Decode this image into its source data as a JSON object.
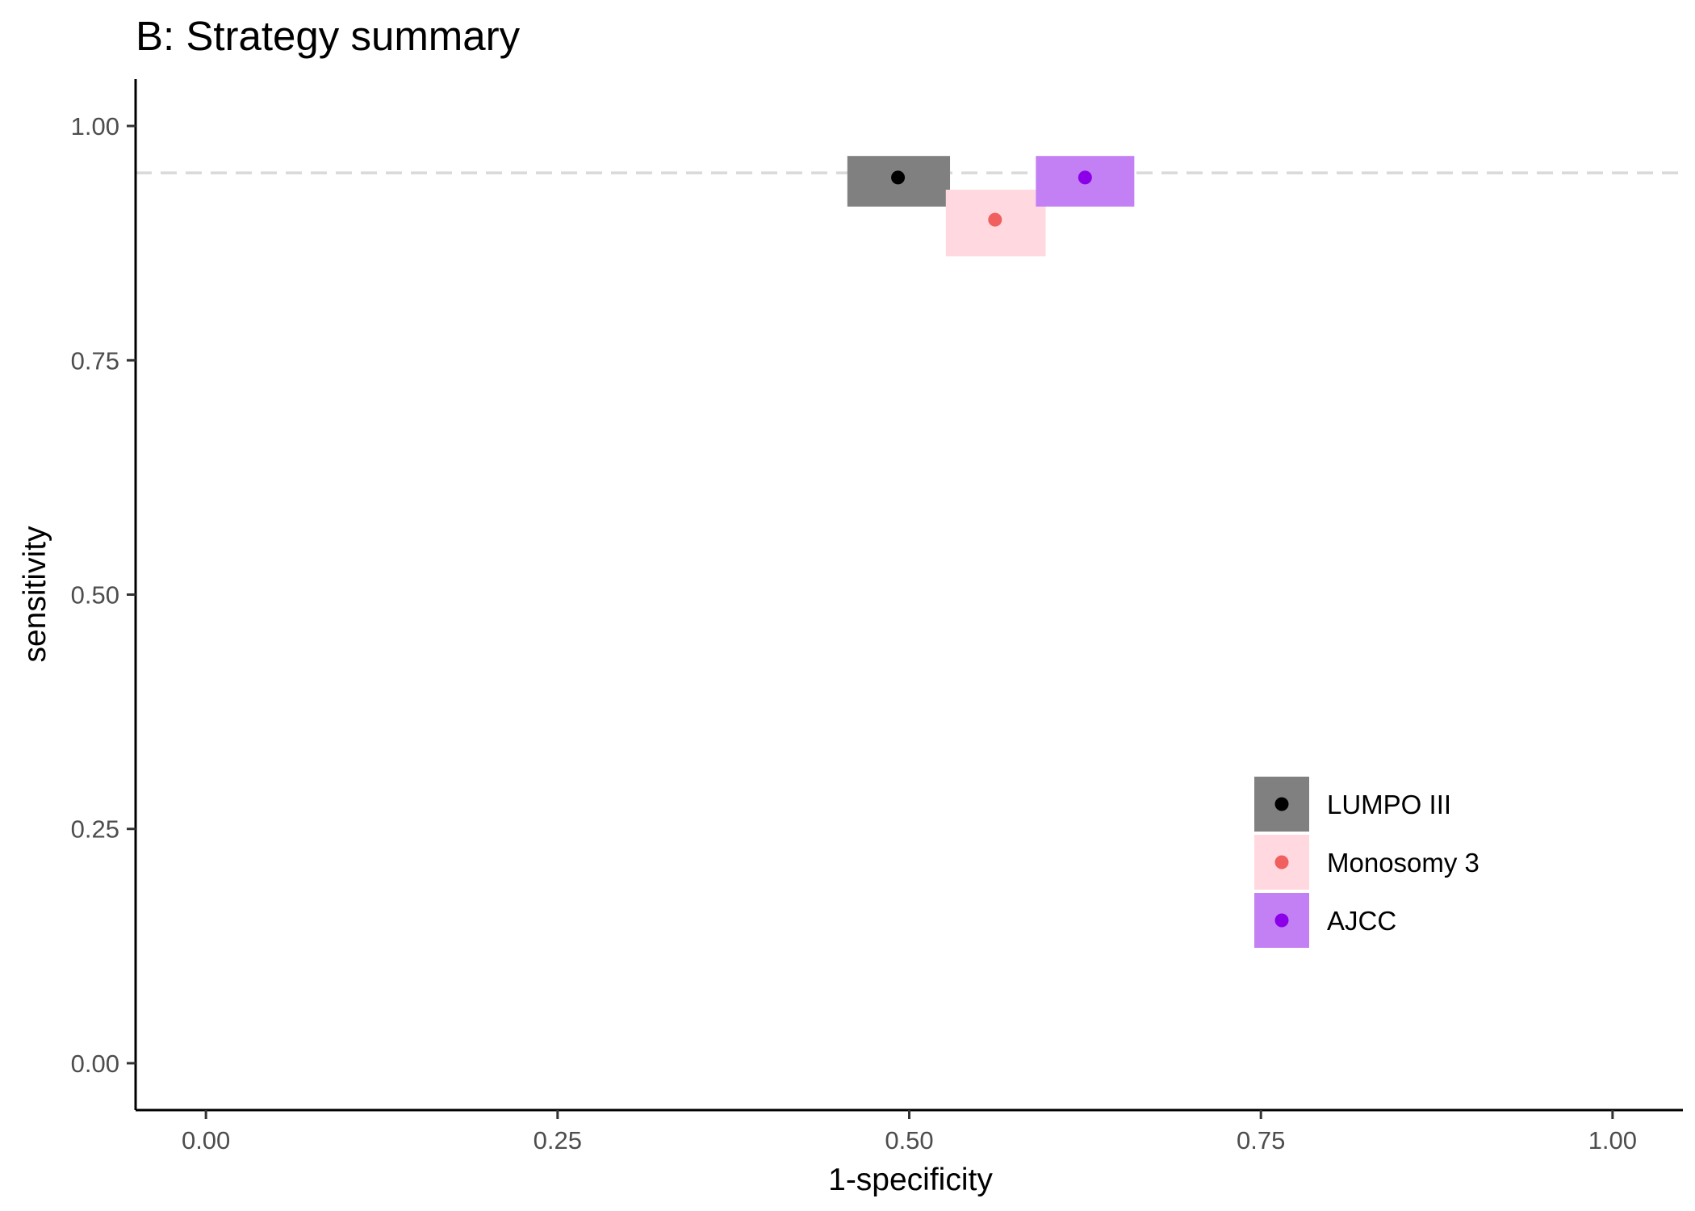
{
  "chart_data": {
    "type": "scatter",
    "title": "B: Strategy summary",
    "xlabel": "1-specificity",
    "ylabel": "sensitivity",
    "xlim": [
      -0.05,
      1.05
    ],
    "ylim": [
      -0.05,
      1.05
    ],
    "x_ticks": [
      0,
      0.25,
      0.5,
      0.75,
      1
    ],
    "x_tick_labels": [
      "0.00",
      "0.25",
      "0.50",
      "0.75",
      "1.00"
    ],
    "y_ticks": [
      0,
      0.25,
      0.5,
      0.75,
      1
    ],
    "y_tick_labels": [
      "0.00",
      "0.25",
      "0.50",
      "0.75",
      "1.00"
    ],
    "reference_line": {
      "orientation": "horizontal",
      "y": 0.95,
      "style": "dashed",
      "color": "#d9d9d9"
    },
    "grid": false,
    "legend_position": "bottom-right",
    "series": [
      {
        "name": "LUMPO III",
        "x": 0.492,
        "y": 0.945,
        "x_ci": [
          0.456,
          0.529
        ],
        "y_ci": [
          0.914,
          0.968
        ],
        "point_color": "#000000",
        "box_color": "#808080"
      },
      {
        "name": "Monosomy 3",
        "x": 0.561,
        "y": 0.9,
        "x_ci": [
          0.526,
          0.597
        ],
        "y_ci": [
          0.861,
          0.932
        ],
        "point_color": "#f0605e",
        "box_color": "#ffd9df"
      },
      {
        "name": "AJCC",
        "x": 0.625,
        "y": 0.945,
        "x_ci": [
          0.59,
          0.66
        ],
        "y_ci": [
          0.914,
          0.968
        ],
        "point_color": "#8b00e8",
        "box_color": "#c380f4"
      }
    ]
  }
}
